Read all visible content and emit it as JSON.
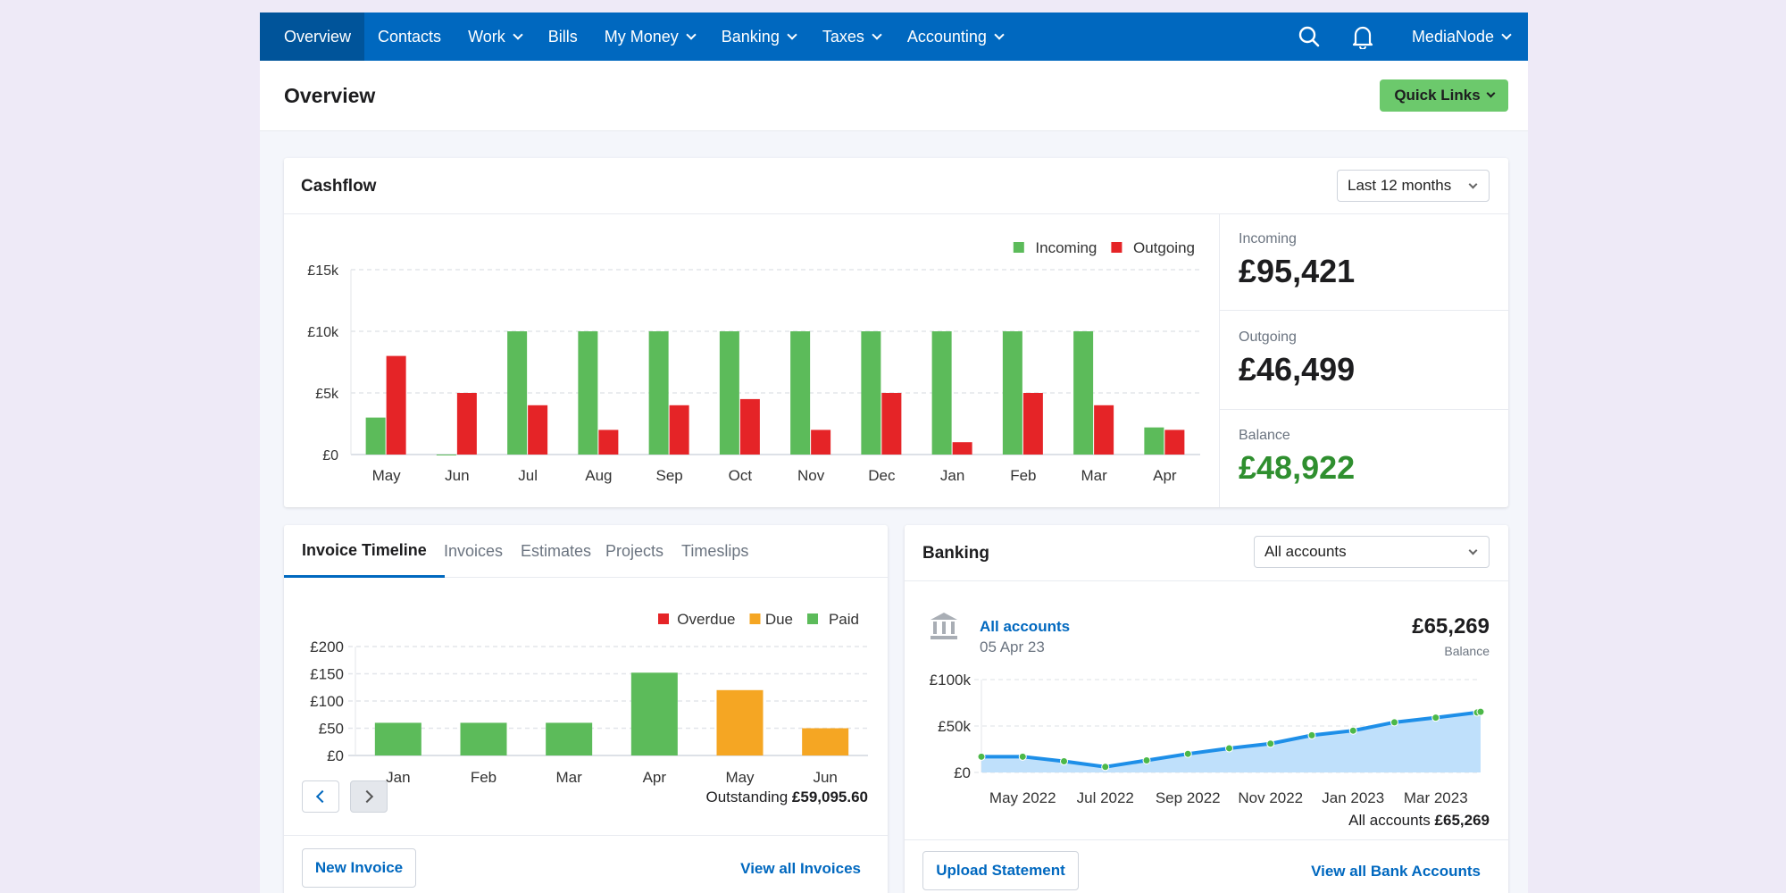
{
  "nav": {
    "items": [
      {
        "label": "Overview",
        "active": true,
        "dropdown": false
      },
      {
        "label": "Contacts",
        "dropdown": false
      },
      {
        "label": "Work",
        "dropdown": true
      },
      {
        "label": "Bills",
        "dropdown": false
      },
      {
        "label": "My Money",
        "dropdown": true
      },
      {
        "label": "Banking",
        "dropdown": true
      },
      {
        "label": "Taxes",
        "dropdown": true
      },
      {
        "label": "Accounting",
        "dropdown": true
      }
    ],
    "user": "MediaNode",
    "icons": [
      "search-icon",
      "bell-icon"
    ]
  },
  "header": {
    "title": "Overview",
    "quick_links": "Quick Links"
  },
  "colors": {
    "nav": "#0068bf",
    "green": "#5cbb5a",
    "red": "#e52427",
    "orange": "#f5a623",
    "blue": "#1e8fe8",
    "area": "#bfe0fb",
    "balance": "#2f8f2f"
  },
  "cashflow": {
    "title": "Cashflow",
    "period": "Last 12 months",
    "stats": {
      "incoming_label": "Incoming",
      "incoming": "£95,421",
      "outgoing_label": "Outgoing",
      "outgoing": "£46,499",
      "balance_label": "Balance",
      "balance": "£48,922"
    }
  },
  "invoices": {
    "tabs": [
      "Invoice Timeline",
      "Invoices",
      "Estimates",
      "Projects",
      "Timeslips"
    ],
    "active_tab": 0,
    "outstanding_label": "Outstanding",
    "outstanding": "£59,095.60",
    "new_button": "New Invoice",
    "view_all": "View all Invoices"
  },
  "banking": {
    "title": "Banking",
    "account_select": "All accounts",
    "account_name": "All accounts",
    "date": "05 Apr 23",
    "balance": "£65,269",
    "balance_label": "Balance",
    "total_label": "All accounts",
    "total": "£65,269",
    "upload_button": "Upload Statement",
    "view_all": "View all Bank Accounts"
  },
  "chart_data": [
    {
      "type": "bar",
      "categories": [
        "May",
        "Jun",
        "Jul",
        "Aug",
        "Sep",
        "Oct",
        "Nov",
        "Dec",
        "Jan",
        "Feb",
        "Mar",
        "Apr"
      ],
      "series": [
        {
          "name": "Incoming",
          "values": [
            3000,
            0,
            10000,
            10000,
            10000,
            10000,
            10000,
            10000,
            10000,
            10000,
            10000,
            2200
          ]
        },
        {
          "name": "Outgoing",
          "values": [
            8000,
            5000,
            4000,
            2000,
            4000,
            4500,
            2000,
            5000,
            1000,
            5000,
            4000,
            2000
          ]
        }
      ],
      "yticks": [
        "£0",
        "£5k",
        "£10k",
        "£15k"
      ],
      "ylim": [
        0,
        15000
      ],
      "legend": "top-right",
      "grid": true
    },
    {
      "type": "bar",
      "categories": [
        "Jan",
        "Feb",
        "Mar",
        "Apr",
        "May",
        "Jun"
      ],
      "series": [
        {
          "name": "Overdue",
          "values": [
            0,
            0,
            0,
            0,
            0,
            0
          ]
        },
        {
          "name": "Due",
          "values": [
            0,
            0,
            0,
            0,
            120,
            50
          ]
        },
        {
          "name": "Paid",
          "values": [
            60,
            60,
            60,
            152,
            0,
            0
          ]
        }
      ],
      "yticks": [
        "£0",
        "£50",
        "£100",
        "£150",
        "£200"
      ],
      "ylim": [
        0,
        200
      ],
      "legend": "top-right",
      "grid": true
    },
    {
      "type": "area",
      "x": [
        "Apr 2022",
        "May 2022",
        "Jun 2022",
        "Jul 2022",
        "Aug 2022",
        "Sep 2022",
        "Oct 2022",
        "Nov 2022",
        "Dec 2022",
        "Jan 2023",
        "Feb 2023",
        "Mar 2023",
        "Apr 2023",
        "05 Apr 2023"
      ],
      "values": [
        17000,
        17000,
        12000,
        6000,
        13000,
        20000,
        26000,
        31000,
        40000,
        45000,
        54000,
        59000,
        64500,
        65269
      ],
      "xticks": [
        "May 2022",
        "Jul 2022",
        "Sep 2022",
        "Nov 2022",
        "Jan 2023",
        "Mar 2023"
      ],
      "yticks": [
        "£0",
        "£50k",
        "£100k"
      ],
      "ylim": [
        0,
        100000
      ],
      "grid": true
    }
  ]
}
